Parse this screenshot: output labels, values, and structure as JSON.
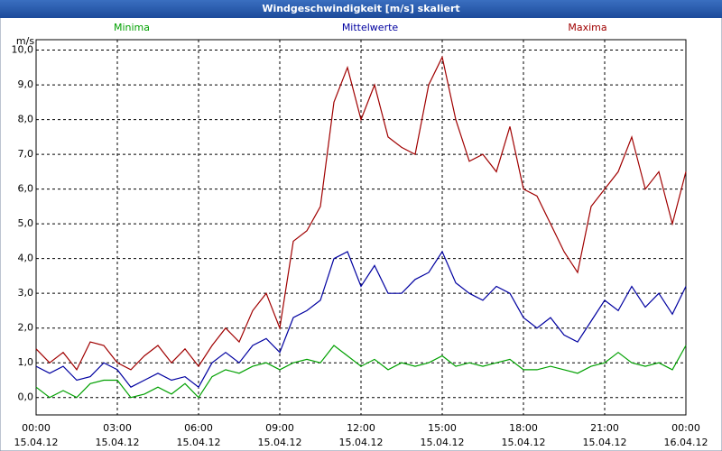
{
  "chart_data": {
    "type": "line",
    "title": "Windgeschwindigkeit [m/s] skaliert",
    "y_unit": "m/s",
    "x": [
      0,
      0.5,
      1,
      1.5,
      2,
      2.5,
      3,
      3.5,
      4,
      4.5,
      5,
      5.5,
      6,
      6.5,
      7,
      7.5,
      8,
      8.5,
      9,
      9.5,
      10,
      10.5,
      11,
      11.5,
      12,
      12.5,
      13,
      13.5,
      14,
      14.5,
      15,
      15.5,
      16,
      16.5,
      17,
      17.5,
      18,
      18.5,
      19,
      19.5,
      20,
      20.5,
      21,
      21.5,
      22,
      22.5,
      23,
      23.5,
      24
    ],
    "series": [
      {
        "name": "Minima",
        "color": "#00a000",
        "values": [
          0.3,
          0.0,
          0.2,
          0.0,
          0.4,
          0.5,
          0.5,
          0.0,
          0.1,
          0.3,
          0.1,
          0.4,
          0.0,
          0.6,
          0.8,
          0.7,
          0.9,
          1.0,
          0.8,
          1.0,
          1.1,
          1.0,
          1.5,
          1.2,
          0.9,
          1.1,
          0.8,
          1.0,
          0.9,
          1.0,
          1.2,
          0.9,
          1.0,
          0.9,
          1.0,
          1.1,
          0.8,
          0.8,
          0.9,
          0.8,
          0.7,
          0.9,
          1.0,
          1.3,
          1.0,
          0.9,
          1.0,
          0.8,
          1.5
        ]
      },
      {
        "name": "Mittelwerte",
        "color": "#0000a0",
        "values": [
          0.9,
          0.7,
          0.9,
          0.5,
          0.6,
          1.0,
          0.8,
          0.3,
          0.5,
          0.7,
          0.5,
          0.6,
          0.3,
          1.0,
          1.3,
          1.0,
          1.5,
          1.7,
          1.3,
          2.3,
          2.5,
          2.8,
          4.0,
          4.2,
          3.2,
          3.8,
          3.0,
          3.0,
          3.4,
          3.6,
          4.2,
          3.3,
          3.0,
          2.8,
          3.2,
          3.0,
          2.3,
          2.0,
          2.3,
          1.8,
          1.6,
          2.2,
          2.8,
          2.5,
          3.2,
          2.6,
          3.0,
          2.4,
          3.2
        ]
      },
      {
        "name": "Maxima",
        "color": "#a00000",
        "values": [
          1.4,
          1.0,
          1.3,
          0.8,
          1.6,
          1.5,
          1.0,
          0.8,
          1.2,
          1.5,
          1.0,
          1.4,
          0.9,
          1.5,
          2.0,
          1.6,
          2.5,
          3.0,
          2.0,
          4.5,
          4.8,
          5.5,
          8.5,
          9.5,
          8.0,
          9.0,
          7.5,
          7.2,
          7.0,
          9.0,
          9.8,
          8.0,
          6.8,
          7.0,
          6.5,
          7.8,
          6.0,
          5.8,
          5.0,
          4.2,
          3.6,
          5.5,
          6.0,
          6.5,
          7.5,
          6.0,
          6.5,
          5.0,
          6.5
        ]
      }
    ],
    "xlim": [
      0,
      24
    ],
    "xticks": [
      {
        "value": 0,
        "label": "00:00"
      },
      {
        "value": 3,
        "label": "03:00"
      },
      {
        "value": 6,
        "label": "06:00"
      },
      {
        "value": 9,
        "label": "09:00"
      },
      {
        "value": 12,
        "label": "12:00"
      },
      {
        "value": 15,
        "label": "15:00"
      },
      {
        "value": 18,
        "label": "18:00"
      },
      {
        "value": 21,
        "label": "21:00"
      },
      {
        "value": 24,
        "label": "00:00"
      }
    ],
    "xtick_dates": [
      "15.04.12",
      "15.04.12",
      "15.04.12",
      "15.04.12",
      "15.04.12",
      "15.04.12",
      "15.04.12",
      "15.04.12",
      "16.04.12"
    ],
    "ylim": [
      -0.5,
      10.3
    ],
    "yticks": [
      {
        "value": 0,
        "label": "0,0"
      },
      {
        "value": 1,
        "label": "1,0"
      },
      {
        "value": 2,
        "label": "2,0"
      },
      {
        "value": 3,
        "label": "3,0"
      },
      {
        "value": 4,
        "label": "4,0"
      },
      {
        "value": 5,
        "label": "5,0"
      },
      {
        "value": 6,
        "label": "6,0"
      },
      {
        "value": 7,
        "label": "7,0"
      },
      {
        "value": 8,
        "label": "8,0"
      },
      {
        "value": 9,
        "label": "9,0"
      },
      {
        "value": 10,
        "label": "10,0"
      }
    ],
    "grid": true
  }
}
